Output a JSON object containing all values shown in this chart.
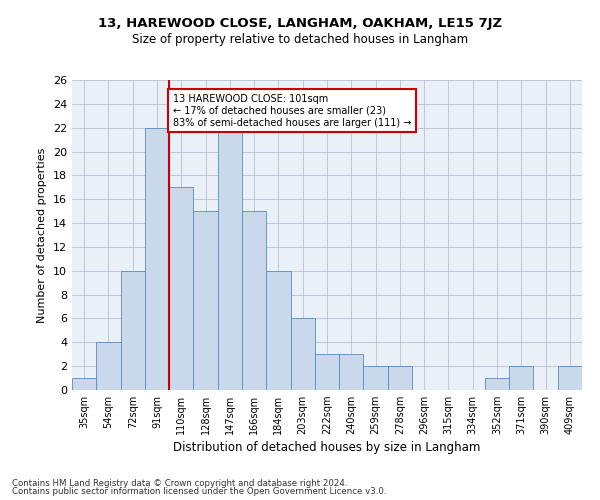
{
  "title": "13, HAREWOOD CLOSE, LANGHAM, OAKHAM, LE15 7JZ",
  "subtitle": "Size of property relative to detached houses in Langham",
  "xlabel": "Distribution of detached houses by size in Langham",
  "ylabel": "Number of detached properties",
  "bar_color": "#c9d9eb",
  "bar_edge_color": "#5a8abf",
  "background_color": "#eaf0f8",
  "categories": [
    "35sqm",
    "54sqm",
    "72sqm",
    "91sqm",
    "110sqm",
    "128sqm",
    "147sqm",
    "166sqm",
    "184sqm",
    "203sqm",
    "222sqm",
    "240sqm",
    "259sqm",
    "278sqm",
    "296sqm",
    "315sqm",
    "334sqm",
    "352sqm",
    "371sqm",
    "390sqm",
    "409sqm"
  ],
  "values": [
    1,
    4,
    10,
    22,
    17,
    15,
    22,
    15,
    10,
    6,
    3,
    3,
    2,
    2,
    0,
    0,
    0,
    1,
    2,
    0,
    2
  ],
  "ylim": [
    0,
    26
  ],
  "yticks": [
    0,
    2,
    4,
    6,
    8,
    10,
    12,
    14,
    16,
    18,
    20,
    22,
    24,
    26
  ],
  "vline_x_index": 3.5,
  "annotation_text": "13 HAREWOOD CLOSE: 101sqm\n← 17% of detached houses are smaller (23)\n83% of semi-detached houses are larger (111) →",
  "annotation_box_color": "#ffffff",
  "annotation_box_edge": "#cc0000",
  "vline_color": "#cc0000",
  "footer_line1": "Contains HM Land Registry data © Crown copyright and database right 2024.",
  "footer_line2": "Contains public sector information licensed under the Open Government Licence v3.0."
}
